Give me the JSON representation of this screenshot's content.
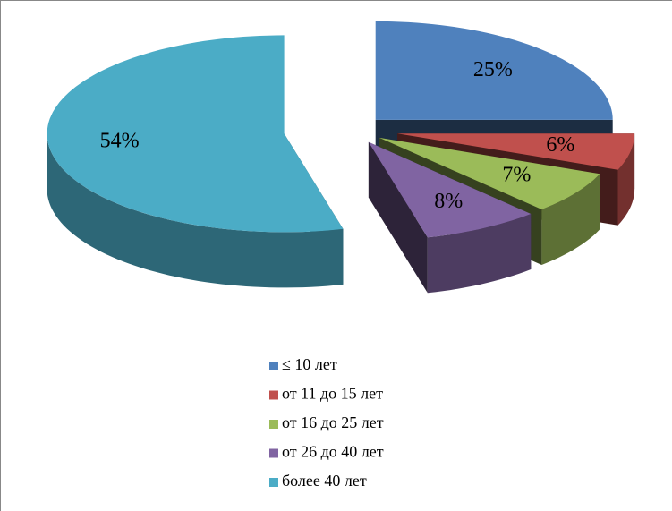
{
  "chart_data": {
    "type": "pie",
    "categories": [
      "≤ 10 лет",
      "от 11 до 15 лет",
      "от 16 до 25 лет",
      "от 26 до 40 лет",
      "более 40 лет"
    ],
    "values": [
      25,
      6,
      7,
      8,
      54
    ],
    "value_labels": [
      "25%",
      "6%",
      "7%",
      "8%",
      "54%"
    ],
    "colors": [
      "#4f81bd",
      "#c0504d",
      "#9bbb59",
      "#8064a2",
      "#4bacc6"
    ],
    "legend": "bottom"
  }
}
